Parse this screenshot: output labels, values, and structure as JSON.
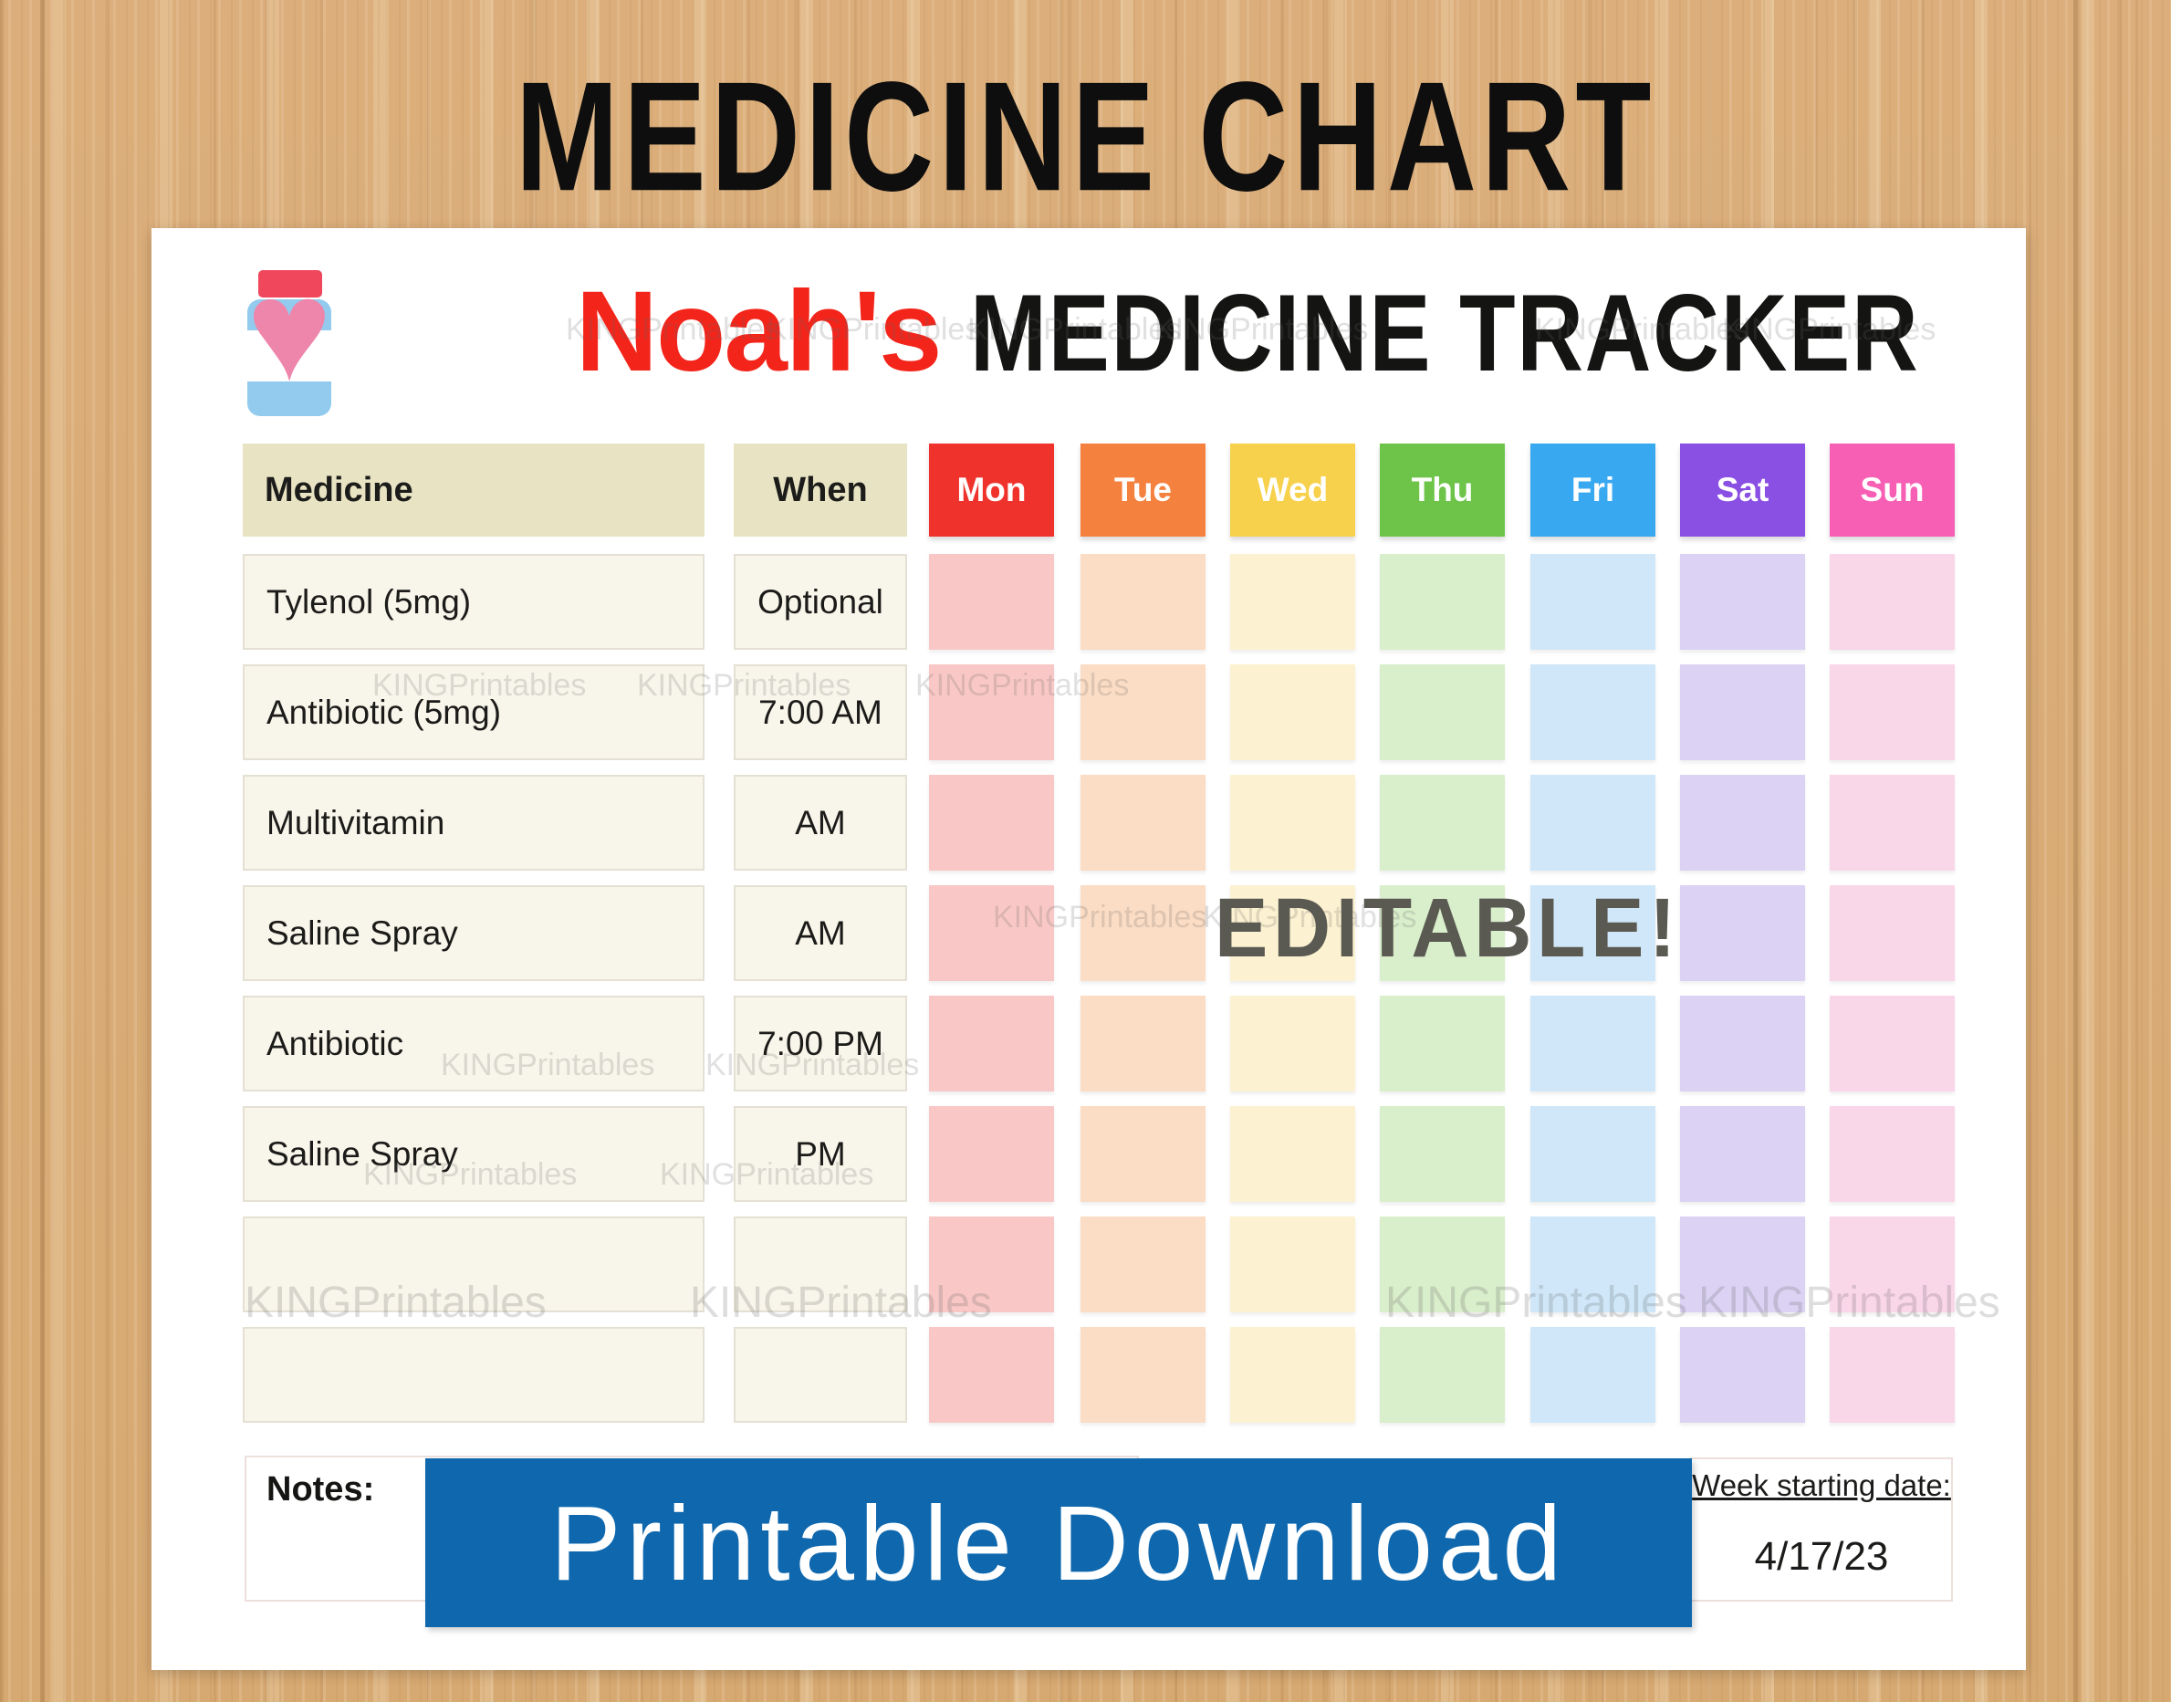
{
  "page_title": "MEDICINE CHART",
  "tracker": {
    "owner": "Noah's",
    "title": "MEDICINE TRACKER",
    "icon": {
      "name": "medicine-bottle-heart-icon",
      "heart_glyph": "♥"
    }
  },
  "table": {
    "medicine_header": "Medicine",
    "when_header": "When",
    "days": [
      {
        "label": "Mon",
        "header_color": "#EF332C",
        "cell_color": "#F9C8C6"
      },
      {
        "label": "Tue",
        "header_color": "#F5813E",
        "cell_color": "#FBDCC4"
      },
      {
        "label": "Wed",
        "header_color": "#F7D14B",
        "cell_color": "#FCF1D0"
      },
      {
        "label": "Thu",
        "header_color": "#6EC449",
        "cell_color": "#D9EECB"
      },
      {
        "label": "Fri",
        "header_color": "#38A8F0",
        "cell_color": "#CFE7F8"
      },
      {
        "label": "Sat",
        "header_color": "#8A4FE3",
        "cell_color": "#DCD3F4"
      },
      {
        "label": "Sun",
        "header_color": "#F75FB4",
        "cell_color": "#FAD6E9"
      }
    ],
    "rows": [
      {
        "medicine": "Tylenol (5mg)",
        "when": "Optional"
      },
      {
        "medicine": "Antibiotic (5mg)",
        "when": "7:00 AM"
      },
      {
        "medicine": "Multivitamin",
        "when": "AM"
      },
      {
        "medicine": "Saline Spray",
        "when": "AM"
      },
      {
        "medicine": "Antibiotic",
        "when": "7:00 PM"
      },
      {
        "medicine": "Saline Spray",
        "when": "PM"
      },
      {
        "medicine": "",
        "when": ""
      },
      {
        "medicine": "",
        "when": ""
      }
    ]
  },
  "notes_label": "Notes:",
  "week_box": {
    "label": "Week starting date:",
    "date": "4/17/23"
  },
  "overlays": {
    "editable": "EDITABLE!",
    "banner": "Printable Download"
  },
  "watermark": {
    "text": "KINGPrintables"
  },
  "colors": {
    "wood_base": "#D9AC77",
    "page": "#FFFFFF",
    "table_header_beige": "#E8E3C3",
    "row_cell_cream": "#F8F5EA",
    "banner_blue": "#0F68AE",
    "owner_red": "#F3251B",
    "editable_gray": "#5A5A52",
    "heart_pink": "#EE86AB",
    "bottle_blue": "#92CBEE",
    "bottle_cap_red": "#F0475C"
  }
}
